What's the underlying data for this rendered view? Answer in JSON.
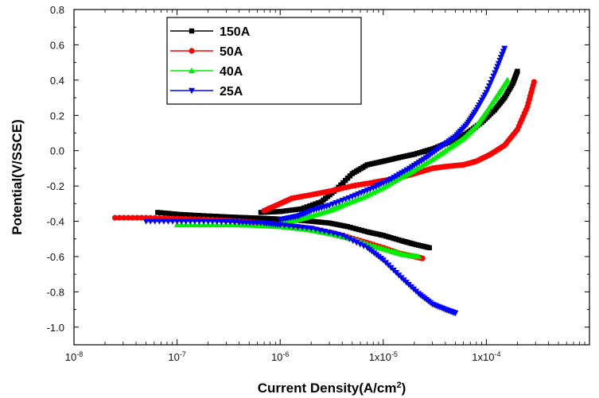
{
  "chart_data": {
    "type": "line",
    "title": "",
    "xlabel": "Current Density(A/cm",
    "xlabel_sup": "2",
    "xlabel_end": ")",
    "ylabel": "Potential(V/SSCE)",
    "x_scale": "log",
    "xlim": [
      1e-08,
      0.001
    ],
    "ylim": [
      -1.1,
      0.8
    ],
    "grid": false,
    "legend_position": "top-left",
    "x_ticks": [
      {
        "value": 1e-08,
        "base": "10",
        "exp": "-8"
      },
      {
        "value": 1e-07,
        "base": "10",
        "exp": "-7"
      },
      {
        "value": 1e-06,
        "base": "10",
        "exp": "-6"
      },
      {
        "value": 1e-05,
        "base": "1x10",
        "exp": "-5"
      },
      {
        "value": 0.0001,
        "base": "1x10",
        "exp": "-4"
      }
    ],
    "y_ticks": [
      {
        "value": 0.8,
        "label": "0.8"
      },
      {
        "value": 0.6,
        "label": "0.6"
      },
      {
        "value": 0.4,
        "label": "0.4"
      },
      {
        "value": 0.2,
        "label": "0.2"
      },
      {
        "value": 0.0,
        "label": "0.0"
      },
      {
        "value": -0.2,
        "label": "-0.2"
      },
      {
        "value": -0.4,
        "label": "-0.4"
      },
      {
        "value": -0.6,
        "label": "-0.6"
      },
      {
        "value": -0.8,
        "label": "-0.8"
      },
      {
        "value": -1.0,
        "label": "-1.0"
      }
    ],
    "series": [
      {
        "name": "150A",
        "color": "#000000",
        "marker": "square",
        "anodic": [
          [
            6.5e-07,
            -0.35
          ],
          [
            1e-06,
            -0.345
          ],
          [
            1.6e-06,
            -0.33
          ],
          [
            2.5e-06,
            -0.29
          ],
          [
            3.5e-06,
            -0.22
          ],
          [
            5e-06,
            -0.13
          ],
          [
            7e-06,
            -0.08
          ],
          [
            1e-05,
            -0.06
          ],
          [
            1.4e-05,
            -0.04
          ],
          [
            2e-05,
            -0.02
          ],
          [
            3e-05,
            0.01
          ],
          [
            4.5e-05,
            0.05
          ],
          [
            6.5e-05,
            0.1
          ],
          [
            9e-05,
            0.16
          ],
          [
            0.00012,
            0.23
          ],
          [
            0.00015,
            0.3
          ],
          [
            0.00018,
            0.38
          ],
          [
            0.0002,
            0.45
          ]
        ],
        "cathodic": [
          [
            6.5e-08,
            -0.35
          ],
          [
            1e-07,
            -0.36
          ],
          [
            2e-07,
            -0.37
          ],
          [
            3e-07,
            -0.375
          ],
          [
            5e-07,
            -0.38
          ],
          [
            8e-07,
            -0.385
          ],
          [
            1.2e-06,
            -0.39
          ],
          [
            2e-06,
            -0.4
          ],
          [
            3e-06,
            -0.41
          ],
          [
            4.5e-06,
            -0.43
          ],
          [
            7e-06,
            -0.46
          ],
          [
            1e-05,
            -0.48
          ],
          [
            1.5e-05,
            -0.51
          ],
          [
            2e-05,
            -0.53
          ],
          [
            2.8e-05,
            -0.55
          ]
        ]
      },
      {
        "name": "50A",
        "color": "#ff0000",
        "marker": "circle",
        "anodic": [
          [
            7e-07,
            -0.34
          ],
          [
            1e-06,
            -0.3
          ],
          [
            1.3e-06,
            -0.27
          ],
          [
            2e-06,
            -0.25
          ],
          [
            3e-06,
            -0.23
          ],
          [
            5e-06,
            -0.2
          ],
          [
            8e-06,
            -0.18
          ],
          [
            1e-05,
            -0.17
          ],
          [
            1.5e-05,
            -0.15
          ],
          [
            2e-05,
            -0.13
          ],
          [
            3e-05,
            -0.1
          ],
          [
            4e-05,
            -0.09
          ],
          [
            6e-05,
            -0.08
          ],
          [
            8e-05,
            -0.06
          ],
          [
            0.00011,
            -0.02
          ],
          [
            0.00015,
            0.03
          ],
          [
            0.0002,
            0.12
          ],
          [
            0.00025,
            0.25
          ],
          [
            0.00029,
            0.39
          ]
        ],
        "cathodic": [
          [
            2.5e-08,
            -0.38
          ],
          [
            5e-08,
            -0.38
          ],
          [
            1e-07,
            -0.385
          ],
          [
            2e-07,
            -0.39
          ],
          [
            4e-07,
            -0.4
          ],
          [
            7e-07,
            -0.41
          ],
          [
            1e-06,
            -0.42
          ],
          [
            2e-06,
            -0.44
          ],
          [
            3.5e-06,
            -0.47
          ],
          [
            6e-06,
            -0.51
          ],
          [
            1e-05,
            -0.55
          ],
          [
            1.4e-05,
            -0.58
          ],
          [
            2e-05,
            -0.6
          ],
          [
            2.4e-05,
            -0.61
          ]
        ]
      },
      {
        "name": "40A",
        "color": "#00ee00",
        "marker": "triangle-up",
        "anodic": [
          [
            1e-06,
            -0.41
          ],
          [
            1.5e-06,
            -0.39
          ],
          [
            2e-06,
            -0.37
          ],
          [
            3e-06,
            -0.34
          ],
          [
            4e-06,
            -0.31
          ],
          [
            6e-06,
            -0.27
          ],
          [
            1e-05,
            -0.21
          ],
          [
            1.5e-05,
            -0.15
          ],
          [
            2e-05,
            -0.11
          ],
          [
            3e-05,
            -0.05
          ],
          [
            4.5e-05,
            0.02
          ],
          [
            6e-05,
            0.07
          ],
          [
            8e-05,
            0.14
          ],
          [
            0.0001,
            0.22
          ],
          [
            0.00013,
            0.32
          ],
          [
            0.00016,
            0.4
          ]
        ],
        "cathodic": [
          [
            1e-07,
            -0.42
          ],
          [
            2e-07,
            -0.42
          ],
          [
            4e-07,
            -0.42
          ],
          [
            7e-07,
            -0.425
          ],
          [
            1e-06,
            -0.43
          ],
          [
            2e-06,
            -0.45
          ],
          [
            3e-06,
            -0.47
          ],
          [
            5e-06,
            -0.5
          ],
          [
            8e-06,
            -0.54
          ],
          [
            1.2e-05,
            -0.57
          ],
          [
            1.6e-05,
            -0.59
          ],
          [
            2.2e-05,
            -0.6
          ]
        ]
      },
      {
        "name": "25A",
        "color": "#0000ff",
        "marker": "triangle-down",
        "anodic": [
          [
            1e-06,
            -0.39
          ],
          [
            1.5e-06,
            -0.37
          ],
          [
            2e-06,
            -0.34
          ],
          [
            3e-06,
            -0.31
          ],
          [
            5e-06,
            -0.26
          ],
          [
            8e-06,
            -0.21
          ],
          [
            1.2e-05,
            -0.16
          ],
          [
            1.8e-05,
            -0.1
          ],
          [
            2.6e-05,
            -0.04
          ],
          [
            3.6e-05,
            0.02
          ],
          [
            5e-05,
            0.08
          ],
          [
            6.5e-05,
            0.15
          ],
          [
            8e-05,
            0.23
          ],
          [
            0.0001,
            0.33
          ],
          [
            0.000125,
            0.46
          ],
          [
            0.00015,
            0.58
          ]
        ],
        "cathodic": [
          [
            5e-08,
            -0.4
          ],
          [
            1e-07,
            -0.4
          ],
          [
            2e-07,
            -0.4
          ],
          [
            4e-07,
            -0.405
          ],
          [
            7e-07,
            -0.41
          ],
          [
            1e-06,
            -0.42
          ],
          [
            2e-06,
            -0.44
          ],
          [
            4e-06,
            -0.48
          ],
          [
            7e-06,
            -0.55
          ],
          [
            1e-05,
            -0.62
          ],
          [
            1.5e-05,
            -0.72
          ],
          [
            2.2e-05,
            -0.81
          ],
          [
            3e-05,
            -0.87
          ],
          [
            4e-05,
            -0.9
          ],
          [
            5e-05,
            -0.92
          ]
        ]
      }
    ]
  }
}
